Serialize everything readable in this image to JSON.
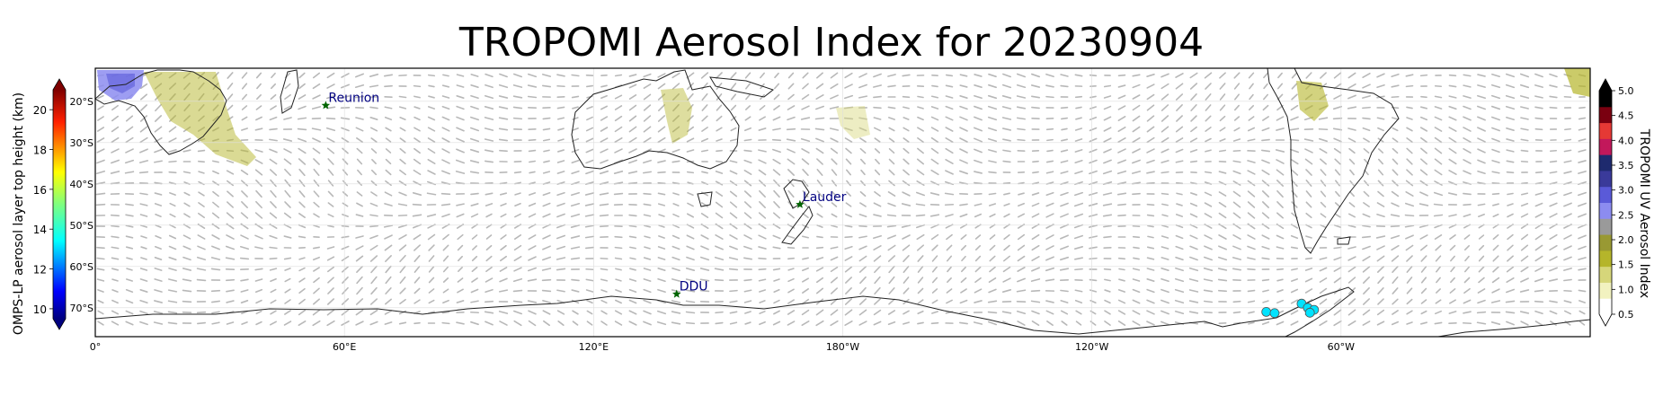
{
  "title": "TROPOMI Aerosol Index for 20230904",
  "left_colorbar": {
    "label": "OMPS-LP aerosol layer top height (km)",
    "ticks": [
      "10",
      "12",
      "14",
      "16",
      "18",
      "20"
    ],
    "range": [
      9.5,
      21
    ],
    "colormap": "jet",
    "extend": "both"
  },
  "right_colorbar": {
    "label": "TROPOMI UV Aerosol Index",
    "ticks": [
      "0.5",
      "1.0",
      "1.5",
      "2.0",
      "2.5",
      "3.0",
      "3.5",
      "4.0",
      "4.5",
      "5.0"
    ],
    "range": [
      0.5,
      5.0
    ],
    "colors": [
      "#ffffff",
      "#f2f2c0",
      "#d6d67a",
      "#b5b52a",
      "#999933",
      "#9a9a9a",
      "#8c8cf0",
      "#5a5ad8",
      "#3a3a9a",
      "#1e2a6e",
      "#c2185b",
      "#e53935",
      "#7a0010",
      "#000000"
    ],
    "extend": "both"
  },
  "map": {
    "projection": "PlateCarree",
    "central_longitude": 180,
    "lon_range": [
      0,
      360
    ],
    "lat_range": [
      -77,
      -12
    ],
    "x_ticks": [
      "0°",
      "60°E",
      "120°E",
      "180°W",
      "120°W",
      "60°W"
    ],
    "y_ticks": [
      "20°S",
      "30°S",
      "40°S",
      "50°S",
      "60°S",
      "70°S"
    ],
    "grid": true,
    "wind_vectors": true
  },
  "sites": [
    {
      "name": "Reunion",
      "lon": 55.5,
      "lat": -21.0
    },
    {
      "name": "Lauder",
      "lon": 169.7,
      "lat": -45.0
    },
    {
      "name": "DDU",
      "lon": 140.0,
      "lat": -66.7
    }
  ],
  "omps_points": [
    {
      "lon": 282.0,
      "lat": -71.0,
      "height_km": 13.5
    },
    {
      "lon": 284.0,
      "lat": -71.3,
      "height_km": 13.5
    },
    {
      "lon": 290.5,
      "lat": -69.0,
      "height_km": 13.5
    },
    {
      "lon": 292.0,
      "lat": -70.0,
      "height_km": 13.5
    },
    {
      "lon": 293.5,
      "lat": -70.5,
      "height_km": 13.5
    },
    {
      "lon": 292.5,
      "lat": -71.2,
      "height_km": 13.5
    }
  ]
}
